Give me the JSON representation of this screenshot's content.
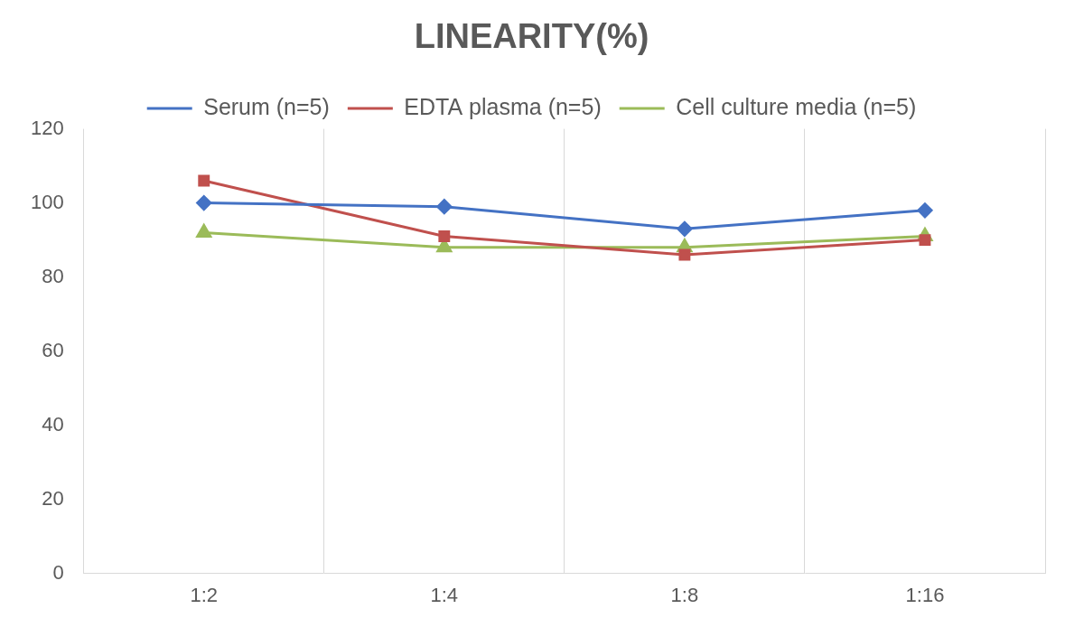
{
  "chart_data": {
    "type": "line",
    "title": "LINEARITY(%)",
    "categories": [
      "1:2",
      "1:4",
      "1:8",
      "1:16"
    ],
    "series": [
      {
        "name": "Serum (n=5)",
        "color": "#4472c4",
        "marker": "diamond",
        "values": [
          100,
          99,
          93,
          98
        ]
      },
      {
        "name": "EDTA plasma (n=5)",
        "color": "#c0504d",
        "marker": "square",
        "values": [
          106,
          91,
          86,
          90
        ]
      },
      {
        "name": "Cell culture media (n=5)",
        "color": "#9bbb59",
        "marker": "triangle",
        "values": [
          92,
          88,
          88,
          91
        ]
      }
    ],
    "ylim": [
      0,
      120
    ],
    "yticks": [
      0,
      20,
      40,
      60,
      80,
      100,
      120
    ],
    "grid": true,
    "legend": "top"
  }
}
